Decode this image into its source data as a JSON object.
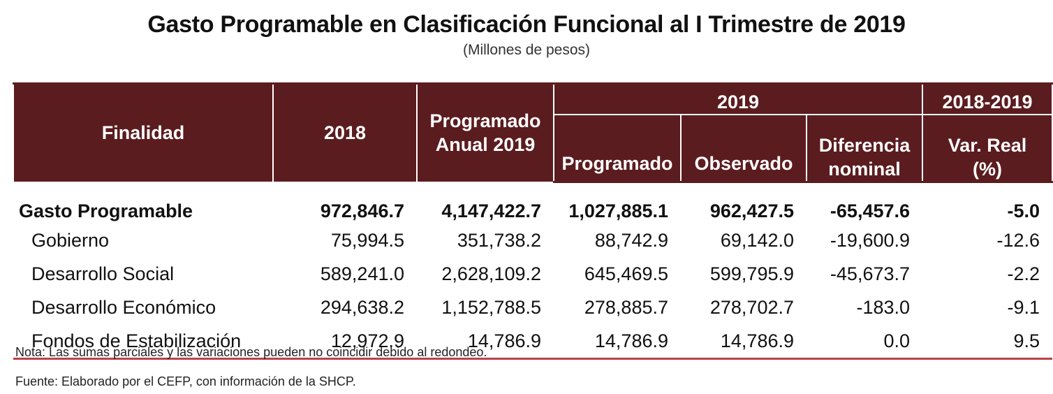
{
  "title": "Gasto Programable en Clasificación Funcional al I Trimestre de 2019",
  "subtitle": "(Millones de pesos)",
  "headers": {
    "finalidad": "Finalidad",
    "y2018": "2018",
    "programado_anual": "Programado Anual 2019",
    "group_2019": "2019",
    "programado": "Programado",
    "observado": "Observado",
    "diferencia": "Diferencia nominal",
    "group_2018_2019": "2018-2019",
    "var_real": "Var. Real (%)"
  },
  "rows": [
    {
      "label": "Gasto Programable",
      "y2018": "972,846.7",
      "anual": "4,147,422.7",
      "programado": "1,027,885.1",
      "observado": "962,427.5",
      "diferencia": "-65,457.6",
      "var": "-5.0"
    },
    {
      "label": "Gobierno",
      "y2018": "75,994.5",
      "anual": "351,738.2",
      "programado": "88,742.9",
      "observado": "69,142.0",
      "diferencia": "-19,600.9",
      "var": "-12.6"
    },
    {
      "label": "Desarrollo Social",
      "y2018": "589,241.0",
      "anual": "2,628,109.2",
      "programado": "645,469.5",
      "observado": "599,795.9",
      "diferencia": "-45,673.7",
      "var": "-2.2"
    },
    {
      "label": "Desarrollo Económico",
      "y2018": "294,638.2",
      "anual": "1,152,788.5",
      "programado": "278,885.7",
      "observado": "278,702.7",
      "diferencia": "-183.0",
      "var": "-9.1"
    },
    {
      "label": "Fondos de Estabilización",
      "y2018": "12,972.9",
      "anual": "14,786.9",
      "programado": "14,786.9",
      "observado": "14,786.9",
      "diferencia": "0.0",
      "var": "9.5"
    }
  ],
  "note": "Nota: Las sumas parciales y las variaciones pueden no coincidir debido al redondeo.",
  "source": "Fuente: Elaborado por el CEFP, con información de la SHCP.",
  "colors": {
    "header_bg": "#5b1c1f",
    "header_text": "#ffffff",
    "rule": "#b9424a"
  }
}
